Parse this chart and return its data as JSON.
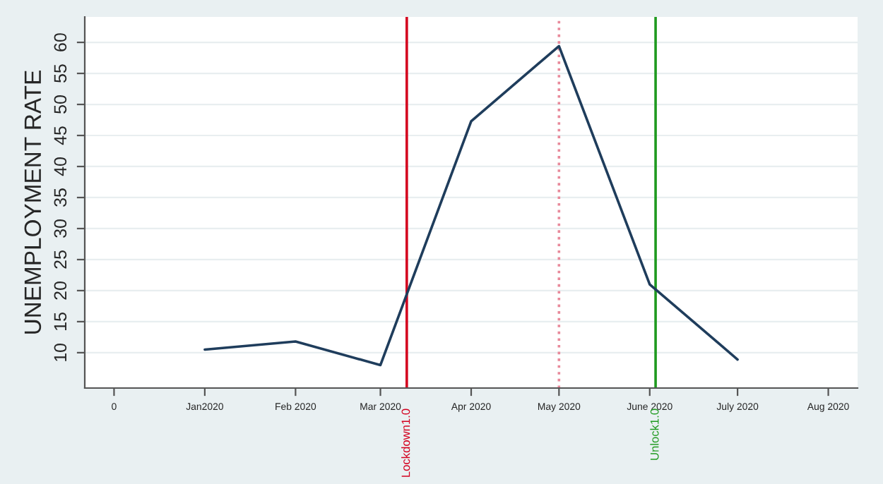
{
  "chart_data": {
    "type": "line",
    "ylabel": "UNEMPLOYMENT RATE",
    "x": [
      "2020-01",
      "2020-02",
      "2020-03",
      "2020-04",
      "2020-05",
      "2020-06",
      "2020-07"
    ],
    "series": [
      {
        "color": "#1f3d5c",
        "values": [
          10.5,
          11.8,
          8.0,
          47.3,
          59.4,
          21.0,
          8.9
        ]
      }
    ],
    "xlim": [
      "2019-11-21",
      "2020-08-11"
    ],
    "xticks": [
      {
        "value": "2019-12",
        "label": "0"
      },
      {
        "value": "2020-01",
        "label": "Jan2020"
      },
      {
        "value": "2020-02",
        "label": "Feb 2020"
      },
      {
        "value": "2020-03",
        "label": "Mar 2020"
      },
      {
        "value": "2020-04",
        "label": "Apr 2020"
      },
      {
        "value": "2020-05",
        "label": "May 2020"
      },
      {
        "value": "2020-06",
        "label": "June 2020"
      },
      {
        "value": "2020-07",
        "label": "July 2020"
      },
      {
        "value": "2020-08",
        "label": "Aug 2020"
      }
    ],
    "ylim": [
      4.3,
      64.1
    ],
    "yticks": [
      10,
      15,
      20,
      25,
      30,
      35,
      40,
      45,
      50,
      55,
      60
    ],
    "grid": "y",
    "marker": "none",
    "line_style": "solid",
    "ref_lines": [
      {
        "axis": "x",
        "value": "2020-03-10",
        "label": "Lockdown1.0",
        "color": "#d4001f",
        "line_style": "solid"
      },
      {
        "axis": "x",
        "value": "2020-05",
        "color": "#e8899a",
        "line_style": "dotted"
      },
      {
        "axis": "x",
        "value": "2020-06-03",
        "label": "Unlock1.0",
        "color": "#1f9a1f",
        "line_style": "solid"
      }
    ]
  }
}
